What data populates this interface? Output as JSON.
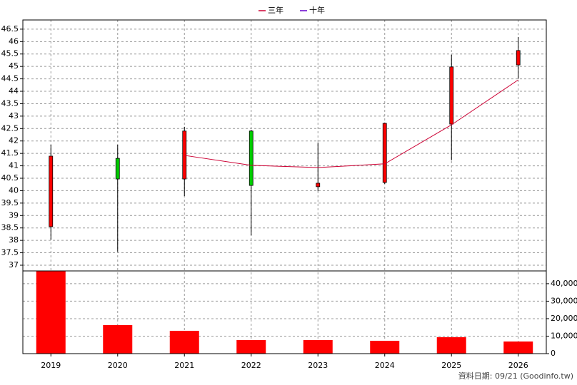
{
  "chart_data": {
    "type": "candlestick",
    "categories": [
      "2019",
      "2020",
      "2021",
      "2022",
      "2023",
      "2024",
      "2025",
      "2026"
    ],
    "open": [
      38.55,
      41.3,
      40.47,
      42.4,
      40.16,
      40.33,
      42.68,
      45.06
    ],
    "high": [
      41.85,
      41.85,
      42.57,
      42.45,
      41.94,
      42.74,
      45.47,
      46.18
    ],
    "low": [
      38.03,
      37.55,
      39.78,
      38.2,
      39.98,
      40.27,
      41.22,
      44.5
    ],
    "close": [
      41.39,
      40.47,
      42.4,
      40.21,
      40.3,
      42.71,
      44.98,
      45.64
    ],
    "up_color": "#ff0000",
    "down_color": "#00cc00",
    "series": [
      {
        "name": "三年",
        "color": "#cc0033",
        "values": [
          null,
          null,
          41.42,
          41.02,
          40.93,
          41.08,
          42.65,
          44.46
        ]
      },
      {
        "name": "十年",
        "color": "#6600cc",
        "values": [
          null,
          null,
          null,
          null,
          null,
          null,
          null,
          null
        ]
      }
    ],
    "ylim": [
      36.77,
      46.87
    ],
    "yticks": [
      37,
      37.5,
      38,
      38.5,
      39,
      39.5,
      40,
      40.5,
      41,
      41.5,
      42,
      42.5,
      43,
      43.5,
      44,
      44.5,
      45,
      45.5,
      46,
      46.5
    ],
    "grid": true,
    "volume": {
      "color": "#ff0000",
      "values": [
        47300,
        16330,
        13060,
        7760,
        7760,
        7350,
        9390,
        6940
      ],
      "ylim": [
        0,
        47300
      ],
      "yticks": [
        0,
        {
          "value": 10000,
          "label": "10,000"
        },
        {
          "value": 20000,
          "label": "20,000"
        },
        {
          "value": 30000,
          "label": "30,000"
        },
        {
          "value": 40000,
          "label": "40,000"
        }
      ]
    },
    "footer": "資料日期: 09/21  (Goodinfo.tw)"
  }
}
